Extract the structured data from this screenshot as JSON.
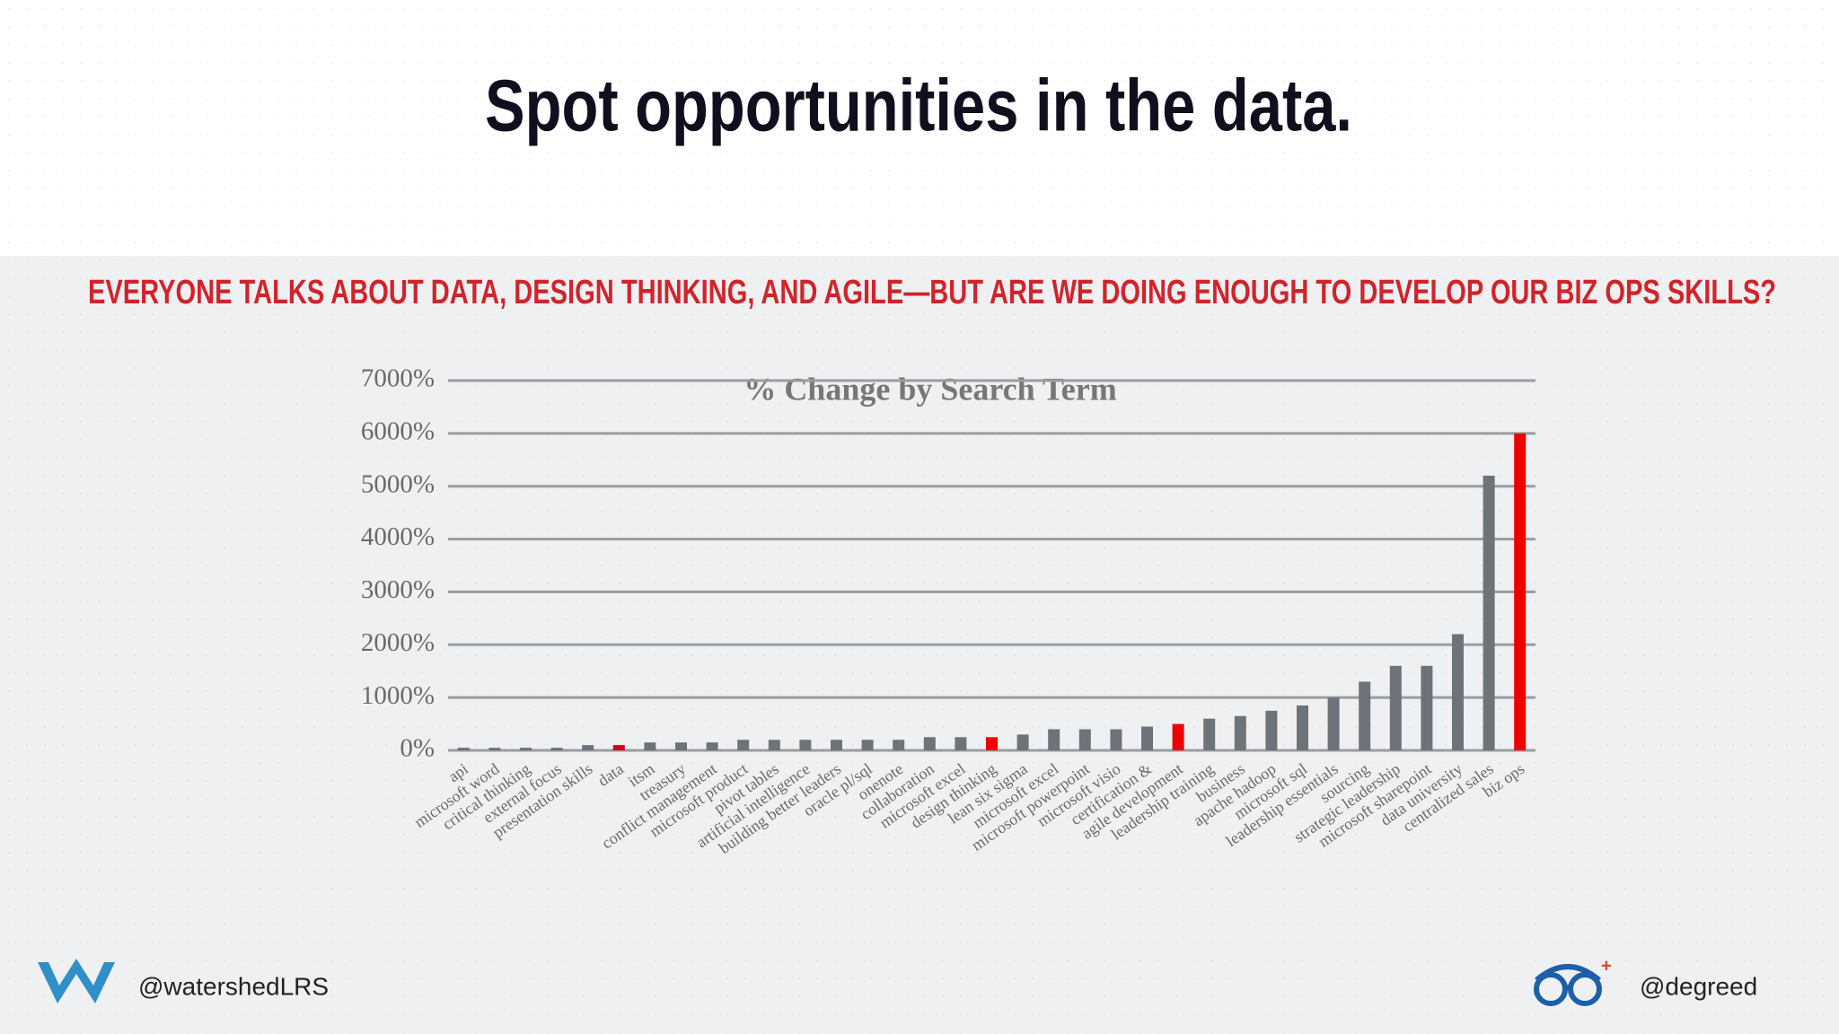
{
  "title": "Spot opportunities in the data.",
  "subtitle": "EVERYONE TALKS ABOUT DATA, DESIGN THINKING, AND AGILE—BUT ARE WE DOING ENOUGH TO DEVELOP OUR BIZ OPS SKILLS?",
  "footer": {
    "left_handle": "@watershedLRS",
    "right_handle": "@degreed"
  },
  "chart_data": {
    "type": "bar",
    "title": "% Change by Search Term",
    "categories": [
      "api",
      "microsoft word",
      "critical thinking",
      "external focus",
      "presentation skills",
      "data",
      "itsm",
      "treasury",
      "conflict management",
      "microsoft product",
      "pivot tables",
      "artificial intelligence",
      "building better leaders",
      "oracle pl/sql",
      "onenote",
      "collaboration",
      "microsoft excel",
      "design thinking",
      "lean six sigma",
      "microsoft excel",
      "microsoft powerpoint",
      "microsoft visio",
      "certification &",
      "agile development",
      "leadership training",
      "business",
      "apache hadoop",
      "microsoft sql",
      "leadership essentials",
      "sourcing",
      "strategic leadership",
      "microsoft sharepoint",
      "data university",
      "centralized sales",
      "biz ops"
    ],
    "values": [
      50,
      50,
      50,
      50,
      100,
      100,
      150,
      150,
      150,
      200,
      200,
      200,
      200,
      200,
      200,
      250,
      250,
      250,
      300,
      400,
      400,
      400,
      450,
      500,
      600,
      650,
      750,
      850,
      1000,
      1300,
      1600,
      1600,
      2200,
      5200,
      6000
    ],
    "colors": [
      "#6d7479",
      "#6d7479",
      "#6d7479",
      "#6d7479",
      "#6d7479",
      "#d0021b",
      "#6d7479",
      "#6d7479",
      "#6d7479",
      "#6d7479",
      "#6d7479",
      "#6d7479",
      "#6d7479",
      "#6d7479",
      "#6d7479",
      "#6d7479",
      "#6d7479",
      "#ee0000",
      "#6d7479",
      "#6d7479",
      "#6d7479",
      "#6d7479",
      "#6d7479",
      "#ee0000",
      "#6d7479",
      "#6d7479",
      "#6d7479",
      "#6d7479",
      "#6d7479",
      "#6d7479",
      "#6d7479",
      "#6d7479",
      "#6d7479",
      "#6d7479",
      "#ee0000"
    ],
    "ylim": [
      0,
      7000
    ],
    "yticks": [
      {
        "value": 0,
        "label": "0%"
      },
      {
        "value": 1000,
        "label": "1000%"
      },
      {
        "value": 2000,
        "label": "2000%"
      },
      {
        "value": 3000,
        "label": "3000%"
      },
      {
        "value": 4000,
        "label": "4000%"
      },
      {
        "value": 5000,
        "label": "5000%"
      },
      {
        "value": 6000,
        "label": "6000%"
      },
      {
        "value": 7000,
        "label": "7000%"
      }
    ],
    "grid": true
  }
}
